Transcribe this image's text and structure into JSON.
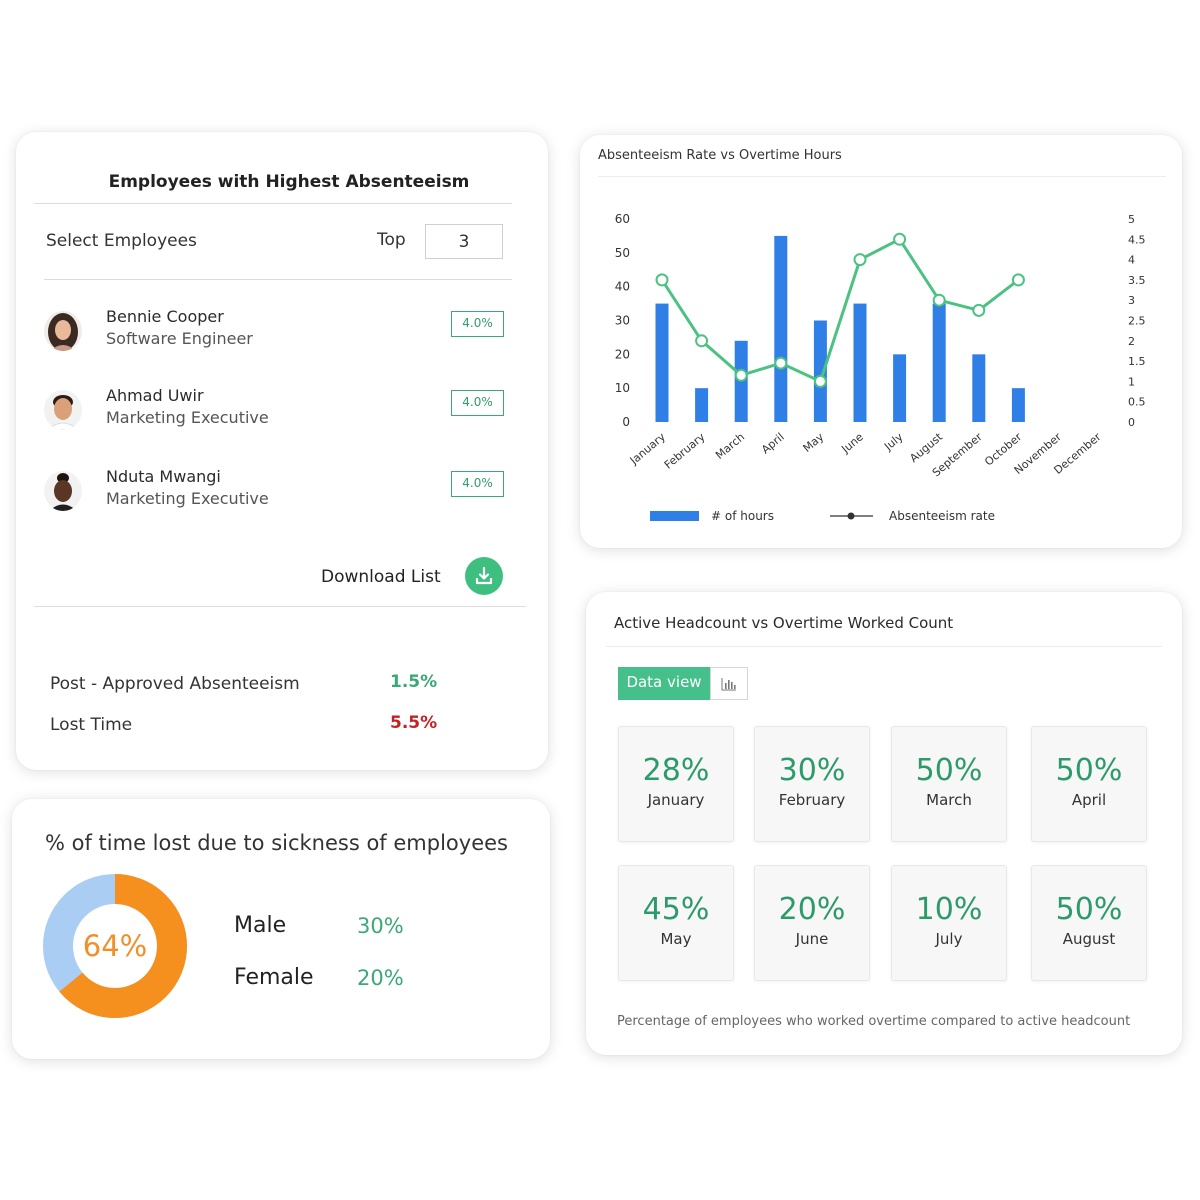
{
  "absentee": {
    "title": "Employees with Highest Absenteeism",
    "select_label": "Select Employees",
    "top_label": "Top",
    "top_value": "3",
    "employees": [
      {
        "name": "Bennie Cooper",
        "role": "Software Engineer",
        "rate": "4.0%"
      },
      {
        "name": "Ahmad Uwir",
        "role": "Marketing Executive",
        "rate": "4.0%"
      },
      {
        "name": "Nduta Mwangi",
        "role": "Marketing Executive",
        "rate": "4.0%"
      }
    ],
    "download_label": "Download List",
    "post_approved_label": "Post - Approved Absenteeism",
    "post_approved_value": "1.5%",
    "lost_time_label": "Lost Time",
    "lost_time_value": "5.5%",
    "colors": {
      "positive": "#3aa877",
      "negative": "#c62020",
      "badge": "#3aa877"
    }
  },
  "sickness": {
    "title": "% of time lost due to sickness of employees",
    "donut_value": "64%",
    "donut_fraction": 0.64,
    "male_label": "Male",
    "male_value": "30%",
    "female_label": "Female",
    "female_value": "20%",
    "colors": {
      "primary": "#f5901e",
      "secondary": "#a9cdf3"
    }
  },
  "chart_data": {
    "type": "bar",
    "title": "Absenteeism Rate vs Overtime Hours",
    "categories": [
      "January",
      "February",
      "March",
      "April",
      "May",
      "June",
      "July",
      "August",
      "September",
      "October",
      "November",
      "December"
    ],
    "series": [
      {
        "name": "# of hours",
        "type": "bar",
        "axis": "left",
        "color": "#2f7fe6",
        "values": [
          35,
          10,
          24,
          55,
          30,
          35,
          20,
          35,
          20,
          10,
          null,
          null
        ]
      },
      {
        "name": "Absenteeism rate",
        "type": "line",
        "axis": "right",
        "color": "#4cc282",
        "values": [
          3.5,
          2.0,
          1.15,
          1.45,
          1.0,
          4.0,
          4.5,
          3.0,
          2.75,
          3.5,
          null,
          null
        ]
      }
    ],
    "y_left": {
      "ticks": [
        "0",
        "10",
        "20",
        "30",
        "40",
        "50",
        "60"
      ],
      "range": [
        0,
        60
      ]
    },
    "y_right": {
      "ticks": [
        "0",
        "0.5",
        "1",
        "1.5",
        "2",
        "2.5",
        "3",
        "3.5",
        "4",
        "4.5",
        "5"
      ],
      "range": [
        0,
        5
      ]
    },
    "legend_position": "bottom",
    "grid": false
  },
  "headcount": {
    "title": "Active Headcount vs Overtime Worked Count",
    "data_view_label": "Data view",
    "tiles": [
      {
        "value": "28%",
        "month": "January"
      },
      {
        "value": "30%",
        "month": "February"
      },
      {
        "value": "50%",
        "month": "March"
      },
      {
        "value": "50%",
        "month": "April"
      },
      {
        "value": "45%",
        "month": "May"
      },
      {
        "value": "20%",
        "month": "June"
      },
      {
        "value": "10%",
        "month": "July"
      },
      {
        "value": "50%",
        "month": "August"
      }
    ],
    "footer": "Percentage of employees who worked overtime compared to active headcount",
    "accent": "#45c08b"
  }
}
